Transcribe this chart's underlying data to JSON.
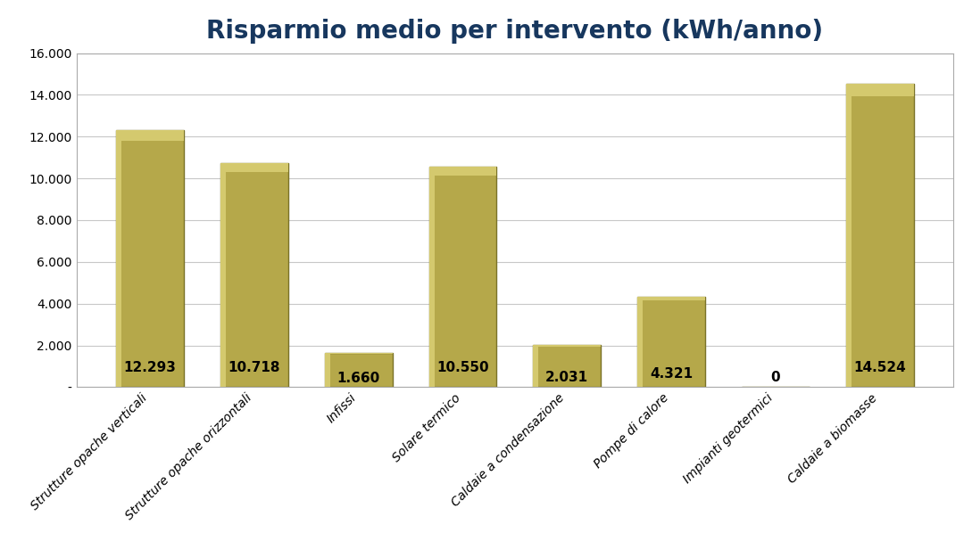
{
  "title": "Risparmio medio per intervento (kWh/anno)",
  "categories": [
    "Strutture opache verticali",
    "Strutture opache orizzontali",
    "Infissi",
    "Solare termico",
    "Caldaie a condensazione",
    "Pompe di calore",
    "Impianti geotermici",
    "Caldaie a biomasse"
  ],
  "values": [
    12293,
    10718,
    1660,
    10550,
    2031,
    4321,
    0,
    14524
  ],
  "labels": [
    "12.293",
    "10.718",
    "1.660",
    "10.550",
    "2.031",
    "4.321",
    "0",
    "14.524"
  ],
  "bar_color_face": "#b5a84a",
  "bar_color_edge": "#7a7228",
  "bar_color_light": "#d4c96e",
  "background_color": "#ffffff",
  "plot_background": "#ffffff",
  "title_color": "#17375e",
  "title_fontsize": 20,
  "tick_label_fontsize": 10,
  "value_label_fontsize": 11,
  "ylim": [
    0,
    16000
  ],
  "yticks": [
    0,
    2000,
    4000,
    6000,
    8000,
    10000,
    12000,
    14000,
    16000
  ],
  "ytick_labels": [
    "-",
    "2.000",
    "4.000",
    "6.000",
    "8.000",
    "10.000",
    "12.000",
    "14.000",
    "16.000"
  ],
  "grid_color": "#c8c8c8",
  "border_color": "#aaaaaa"
}
